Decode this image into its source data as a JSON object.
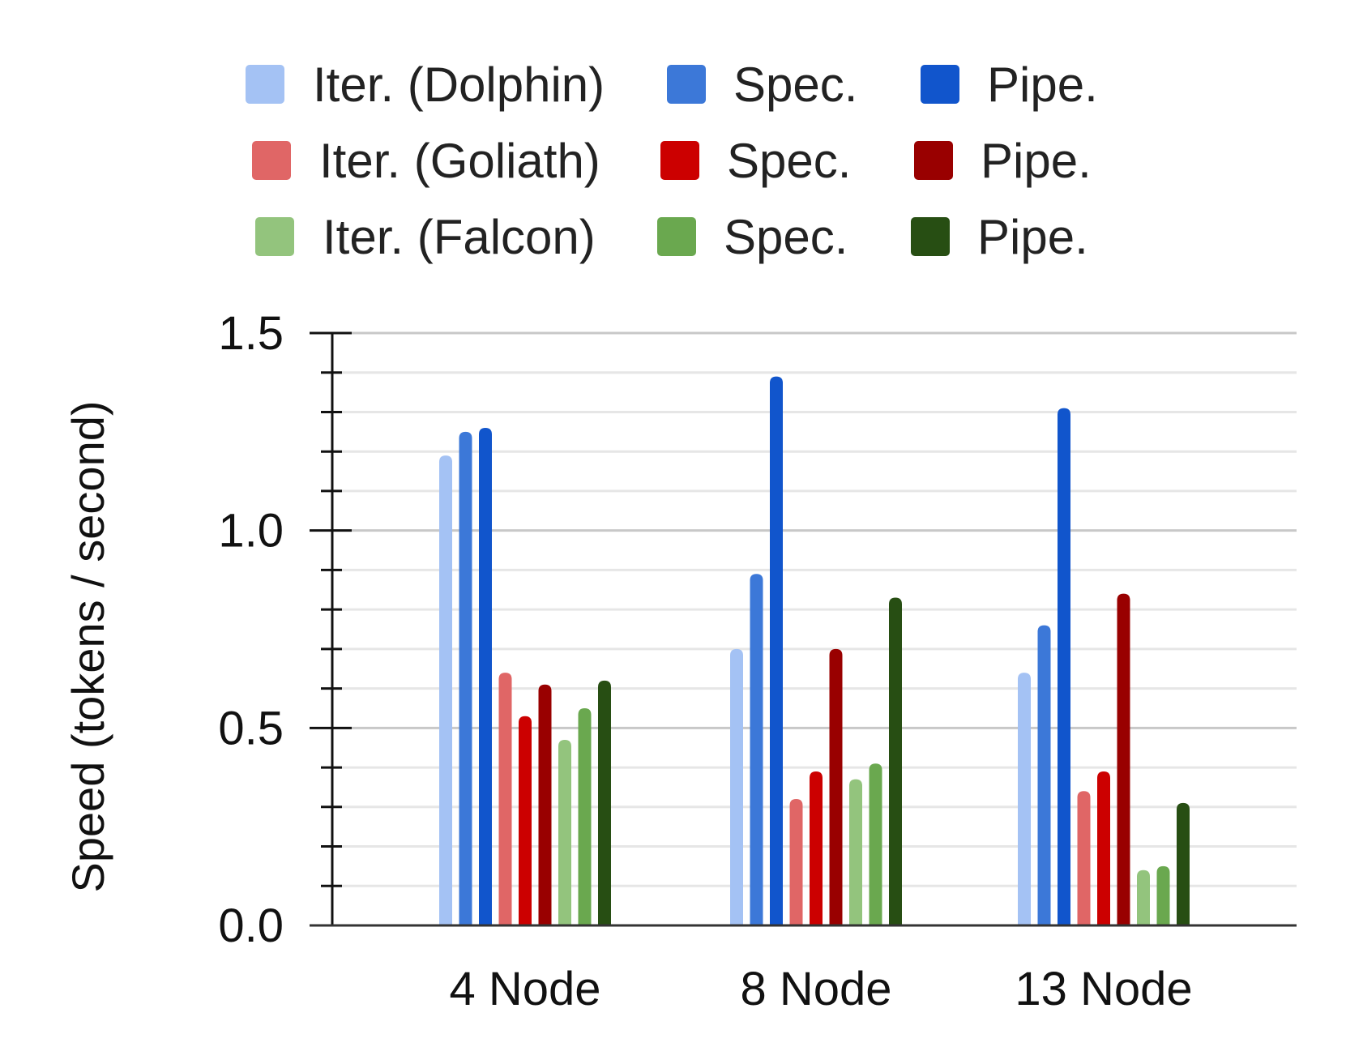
{
  "chart_data": {
    "type": "bar",
    "title": "",
    "xlabel": "",
    "ylabel": "Speed (tokens / second)",
    "ylim": [
      0,
      1.5
    ],
    "yticks": [
      "0.0",
      "0.5",
      "1.0",
      "1.5"
    ],
    "yticks_values": [
      0,
      0.5,
      1.0,
      1.5
    ],
    "minor_step": 0.1,
    "grid": true,
    "legend_position": "top",
    "categories": [
      "4 Node",
      "8 Node",
      "13 Node"
    ],
    "series": [
      {
        "name": "Iter. (Dolphin)",
        "color": "#a4c2f4",
        "values": [
          1.19,
          0.7,
          0.64
        ]
      },
      {
        "name": "Spec.",
        "color": "#3c78d8",
        "values": [
          1.25,
          0.89,
          0.76
        ]
      },
      {
        "name": "Pipe.",
        "color": "#1155cc",
        "values": [
          1.26,
          1.39,
          1.31
        ]
      },
      {
        "name": "Iter. (Goliath)",
        "color": "#e06666",
        "values": [
          0.64,
          0.32,
          0.34
        ]
      },
      {
        "name": "Spec.",
        "color": "#cc0000",
        "values": [
          0.53,
          0.39,
          0.39
        ]
      },
      {
        "name": "Pipe.",
        "color": "#990000",
        "values": [
          0.61,
          0.7,
          0.84
        ]
      },
      {
        "name": "Iter. (Falcon)",
        "color": "#93c47d",
        "values": [
          0.47,
          0.37,
          0.14
        ]
      },
      {
        "name": "Spec.",
        "color": "#6aa84f",
        "values": [
          0.55,
          0.41,
          0.15
        ]
      },
      {
        "name": "Pipe.",
        "color": "#274e13",
        "values": [
          0.62,
          0.83,
          0.31
        ]
      }
    ]
  }
}
